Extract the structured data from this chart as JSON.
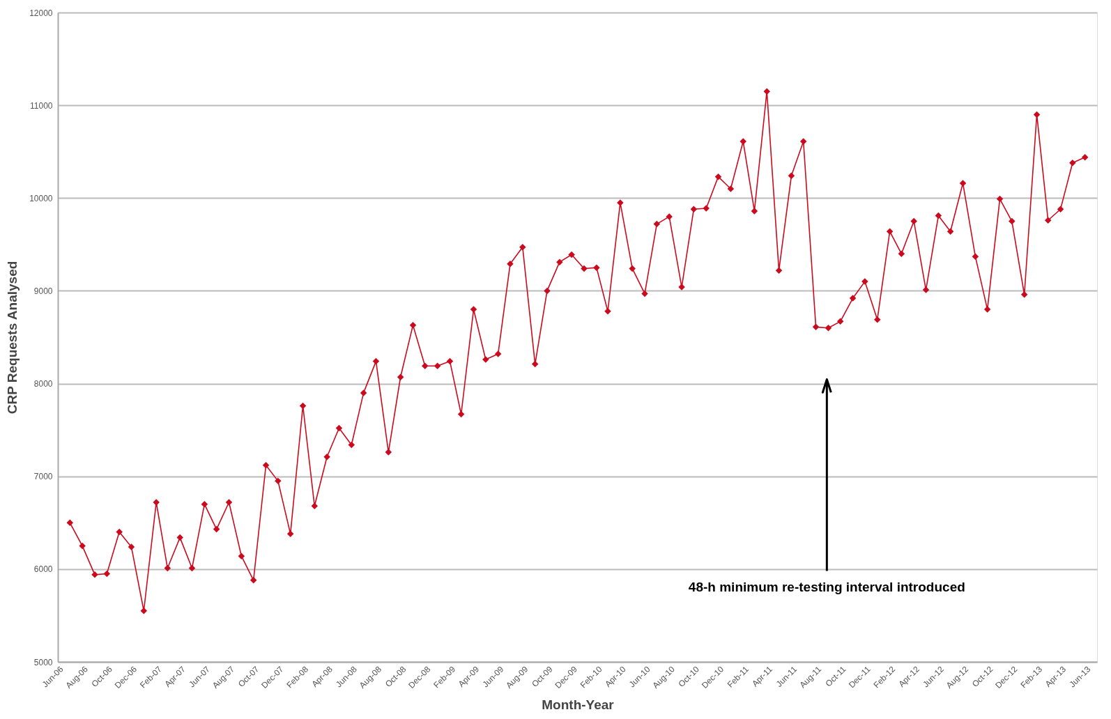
{
  "chart_data": {
    "type": "line",
    "xlabel": "Month-Year",
    "ylabel": "CRP Requests Analysed",
    "x": [
      "2006-07",
      "2006-08",
      "2006-09",
      "2006-10",
      "2006-11",
      "2006-12",
      "2007-01",
      "2007-02",
      "2007-03",
      "2007-04",
      "2007-05",
      "2007-06",
      "2007-07",
      "2007-08",
      "2007-09",
      "2007-10",
      "2007-11",
      "2007-12",
      "2008-01",
      "2008-02",
      "2008-03",
      "2008-04",
      "2008-05",
      "2008-06",
      "2008-07",
      "2008-08",
      "2008-09",
      "2008-10",
      "2008-11",
      "2008-12",
      "2009-01",
      "2009-02",
      "2009-03",
      "2009-04",
      "2009-05",
      "2009-06",
      "2009-07",
      "2009-08",
      "2009-09",
      "2009-10",
      "2009-11",
      "2009-12",
      "2010-01",
      "2010-02",
      "2010-03",
      "2010-04",
      "2010-05",
      "2010-06",
      "2010-07",
      "2010-08",
      "2010-09",
      "2010-10",
      "2010-11",
      "2010-12",
      "2011-01",
      "2011-02",
      "2011-03",
      "2011-04",
      "2011-05",
      "2011-06",
      "2011-07",
      "2011-08",
      "2011-09",
      "2011-10",
      "2011-11",
      "2011-12",
      "2012-01",
      "2012-02",
      "2012-03",
      "2012-04",
      "2012-05",
      "2012-06",
      "2012-07",
      "2012-08",
      "2012-09",
      "2012-10",
      "2012-11",
      "2012-12",
      "2013-01",
      "2013-02",
      "2013-03",
      "2013-04",
      "2013-05",
      "2013-06"
    ],
    "series": [
      {
        "color": "#cc0a1e",
        "values": [
          6500,
          6250,
          5940,
          5950,
          6400,
          6240,
          5550,
          6720,
          6010,
          6340,
          6010,
          6700,
          6430,
          6720,
          6140,
          5880,
          7120,
          6950,
          6380,
          7760,
          6680,
          7210,
          7520,
          7340,
          7900,
          8240,
          7260,
          8070,
          8630,
          8190,
          8190,
          8240,
          7670,
          8800,
          8260,
          8320,
          9290,
          9470,
          8210,
          9000,
          9310,
          9390,
          9240,
          9250,
          8780,
          9950,
          9240,
          8970,
          9720,
          9800,
          9040,
          9880,
          9890,
          10230,
          10100,
          10610,
          9860,
          11150,
          9220,
          10240,
          10610,
          8610,
          8600,
          8670,
          8920,
          9100,
          8690,
          9640,
          9400,
          9750,
          9010,
          9810,
          9640,
          10160,
          9370,
          8800,
          9990,
          9750,
          8960,
          10900,
          9760,
          9880,
          10380,
          10440
        ]
      }
    ],
    "xlim": [
      "2006-06",
      "2013-07"
    ],
    "xticks": [
      {
        "value": "2006-06",
        "label": "Jun-06"
      },
      {
        "value": "2006-08",
        "label": "Aug-06"
      },
      {
        "value": "2006-10",
        "label": "Oct-06"
      },
      {
        "value": "2006-12",
        "label": "Dec-06"
      },
      {
        "value": "2007-02",
        "label": "Feb-07"
      },
      {
        "value": "2007-04",
        "label": "Apr-07"
      },
      {
        "value": "2007-06",
        "label": "Jun-07"
      },
      {
        "value": "2007-08",
        "label": "Aug-07"
      },
      {
        "value": "2007-10",
        "label": "Oct-07"
      },
      {
        "value": "2007-12",
        "label": "Dec-07"
      },
      {
        "value": "2008-02",
        "label": "Feb-08"
      },
      {
        "value": "2008-04",
        "label": "Apr-08"
      },
      {
        "value": "2008-06",
        "label": "Jun-08"
      },
      {
        "value": "2008-08",
        "label": "Aug-08"
      },
      {
        "value": "2008-10",
        "label": "Oct-08"
      },
      {
        "value": "2008-12",
        "label": "Dec-08"
      },
      {
        "value": "2009-02",
        "label": "Feb-09"
      },
      {
        "value": "2009-04",
        "label": "Apr-09"
      },
      {
        "value": "2009-06",
        "label": "Jun-09"
      },
      {
        "value": "2009-08",
        "label": "Aug-09"
      },
      {
        "value": "2009-10",
        "label": "Oct-09"
      },
      {
        "value": "2009-12",
        "label": "Dec-09"
      },
      {
        "value": "2010-02",
        "label": "Feb-10"
      },
      {
        "value": "2010-04",
        "label": "Apr-10"
      },
      {
        "value": "2010-06",
        "label": "Jun-10"
      },
      {
        "value": "2010-08",
        "label": "Aug-10"
      },
      {
        "value": "2010-10",
        "label": "Oct-10"
      },
      {
        "value": "2010-12",
        "label": "Dec-10"
      },
      {
        "value": "2011-02",
        "label": "Feb-11"
      },
      {
        "value": "2011-04",
        "label": "Apr-11"
      },
      {
        "value": "2011-06",
        "label": "Jun-11"
      },
      {
        "value": "2011-08",
        "label": "Aug-11"
      },
      {
        "value": "2011-10",
        "label": "Oct-11"
      },
      {
        "value": "2011-12",
        "label": "Dec-11"
      },
      {
        "value": "2012-02",
        "label": "Feb-12"
      },
      {
        "value": "2012-04",
        "label": "Apr-12"
      },
      {
        "value": "2012-06",
        "label": "Jun-12"
      },
      {
        "value": "2012-08",
        "label": "Aug-12"
      },
      {
        "value": "2012-10",
        "label": "Oct-12"
      },
      {
        "value": "2012-12",
        "label": "Dec-12"
      },
      {
        "value": "2013-02",
        "label": "Feb-13"
      },
      {
        "value": "2013-04",
        "label": "Apr-13"
      },
      {
        "value": "2013-06",
        "label": "Jun-13"
      }
    ],
    "ylim": [
      5000,
      12000
    ],
    "yticks": [
      5000,
      6000,
      7000,
      8000,
      9000,
      10000,
      11000,
      12000
    ],
    "grid": "y",
    "marker": "diamond",
    "line_style": "solid",
    "annotations": [
      "48-h minimum re-testing interval introduced"
    ]
  }
}
